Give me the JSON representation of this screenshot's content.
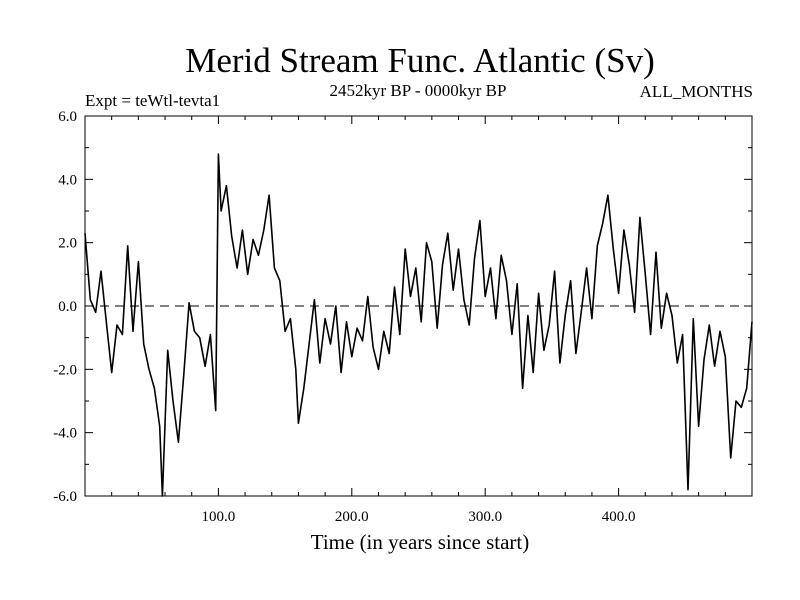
{
  "chart_data": {
    "type": "line",
    "title": "Merid Stream Func. Atlantic (Sv)",
    "annotations": {
      "left": "Expt = teWtl-tevta1",
      "center": "2452kyr BP - 0000kyr BP",
      "right": "ALL_MONTHS"
    },
    "xlabel": "Time (in years since start)",
    "ylabel": "",
    "xlim": [
      0,
      500
    ],
    "ylim": [
      -6,
      6
    ],
    "xticks": [
      100,
      200,
      300,
      400
    ],
    "xtick_labels": [
      "100.0",
      "200.0",
      "300.0",
      "400.0"
    ],
    "yticks": [
      -6,
      -4,
      -2,
      0,
      2,
      4,
      6
    ],
    "ytick_labels": [
      "-6.0",
      "-4.0",
      "-2.0",
      "0.0",
      "2.0",
      "4.0",
      "6.0"
    ],
    "reference_line": {
      "y": 0,
      "style": "dashed"
    },
    "grid": false,
    "series": [
      {
        "name": "Merid Stream Func. Atlantic",
        "x": [
          0,
          4,
          8,
          12,
          16,
          20,
          24,
          28,
          32,
          36,
          40,
          44,
          48,
          52,
          56,
          58,
          62,
          66,
          70,
          74,
          78,
          82,
          86,
          90,
          94,
          98,
          100,
          102,
          106,
          110,
          114,
          118,
          122,
          126,
          130,
          134,
          138,
          142,
          146,
          150,
          154,
          158,
          160,
          164,
          168,
          172,
          176,
          180,
          184,
          188,
          192,
          196,
          200,
          204,
          208,
          212,
          216,
          220,
          224,
          228,
          232,
          236,
          240,
          244,
          248,
          252,
          256,
          260,
          264,
          268,
          272,
          276,
          280,
          284,
          288,
          292,
          296,
          300,
          304,
          308,
          312,
          316,
          320,
          324,
          328,
          332,
          336,
          340,
          344,
          348,
          352,
          356,
          360,
          364,
          368,
          372,
          376,
          380,
          384,
          388,
          392,
          396,
          400,
          404,
          408,
          412,
          416,
          420,
          424,
          428,
          432,
          436,
          440,
          444,
          448,
          452,
          456,
          460,
          464,
          468,
          472,
          476,
          480,
          484,
          488,
          492,
          496,
          500
        ],
        "y": [
          2.3,
          0.2,
          -0.2,
          1.1,
          -0.5,
          -2.1,
          -0.6,
          -0.9,
          1.9,
          -0.8,
          1.4,
          -1.2,
          -2.0,
          -2.6,
          -3.8,
          -6.0,
          -1.4,
          -3.0,
          -4.3,
          -2.2,
          0.1,
          -0.8,
          -1.0,
          -1.9,
          -0.9,
          -3.3,
          4.8,
          3.0,
          3.8,
          2.2,
          1.2,
          2.4,
          1.0,
          2.1,
          1.6,
          2.4,
          3.5,
          1.2,
          0.8,
          -0.8,
          -0.4,
          -2.0,
          -3.7,
          -2.6,
          -1.2,
          0.2,
          -1.8,
          -0.4,
          -1.2,
          0.0,
          -2.1,
          -0.5,
          -1.6,
          -0.7,
          -1.1,
          0.3,
          -1.3,
          -2.0,
          -0.8,
          -1.5,
          0.6,
          -0.9,
          1.8,
          0.3,
          1.2,
          -0.5,
          2.0,
          1.4,
          -0.7,
          1.3,
          2.3,
          0.5,
          1.8,
          0.2,
          -0.6,
          1.5,
          2.7,
          0.3,
          1.2,
          -0.4,
          1.6,
          0.8,
          -0.9,
          0.7,
          -2.6,
          -0.3,
          -2.1,
          0.4,
          -1.4,
          -0.6,
          1.1,
          -1.8,
          -0.3,
          0.8,
          -1.5,
          -0.2,
          1.2,
          -0.4,
          1.9,
          2.6,
          3.5,
          1.8,
          0.4,
          2.4,
          1.3,
          -0.2,
          2.8,
          1.0,
          -0.9,
          1.7,
          -0.7,
          0.4,
          -0.3,
          -1.8,
          -0.9,
          -5.8,
          -0.4,
          -3.8,
          -1.7,
          -0.6,
          -1.9,
          -0.8,
          -1.6,
          -4.8,
          -3.0,
          -3.2,
          -2.6,
          -0.5
        ]
      }
    ]
  }
}
